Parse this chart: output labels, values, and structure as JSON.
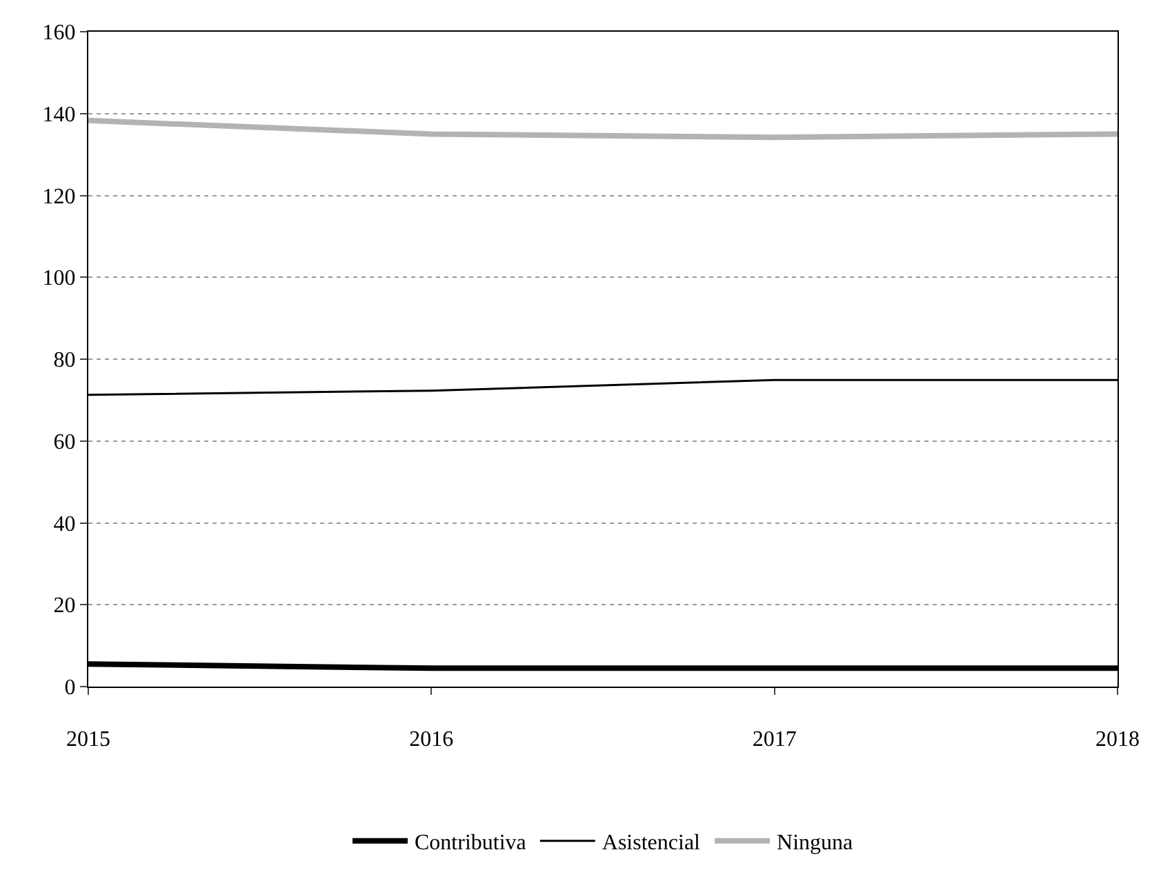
{
  "chart_data": {
    "type": "line",
    "x": [
      2015,
      2016,
      2017,
      2018
    ],
    "series": [
      {
        "name": "Contributiva",
        "color": "#000000",
        "values": [
          5.5,
          4.5,
          4.5,
          4.5
        ]
      },
      {
        "name": "Asistencial",
        "color": "#000000",
        "values": [
          71.3,
          72.3,
          74.9,
          74.9
        ]
      },
      {
        "name": "Ninguna",
        "color": "#b3b3b3",
        "values": [
          138.3,
          135,
          134.2,
          135
        ]
      }
    ],
    "xlim": [
      2015,
      2018
    ],
    "xticks": [
      2015,
      2016,
      2017,
      2018
    ],
    "ylim": [
      0,
      160
    ],
    "yticks": [
      0,
      20,
      40,
      60,
      80,
      100,
      120,
      140,
      160
    ],
    "grid": "y",
    "legend": "bottom",
    "marker": "none",
    "line_style": "solid"
  }
}
